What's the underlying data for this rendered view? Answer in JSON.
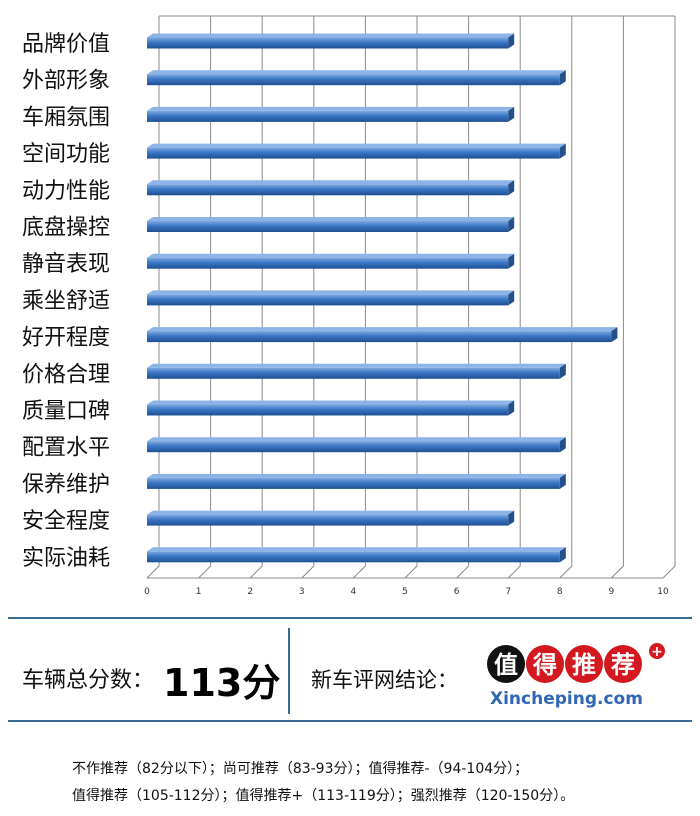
{
  "chart_data": {
    "type": "bar",
    "orientation": "horizontal",
    "categories": [
      "品牌价值",
      "外部形象",
      "车厢氛围",
      "空间功能",
      "动力性能",
      "底盘操控",
      "静音表现",
      "乘坐舒适",
      "好开程度",
      "价格合理",
      "质量口碑",
      "配置水平",
      "保养维护",
      "安全程度",
      "实际油耗"
    ],
    "values": [
      7,
      8,
      7,
      8,
      7,
      7,
      7,
      7,
      9,
      8,
      7,
      8,
      8,
      7,
      8
    ],
    "xlim": [
      0,
      10
    ],
    "xticks": [
      "0",
      "1",
      "2",
      "3",
      "4",
      "5",
      "6",
      "7",
      "8",
      "9",
      "10"
    ],
    "grid": true,
    "bar_color": "#3a76c4"
  },
  "score": {
    "label": "车辆总分数：",
    "value": "113分"
  },
  "conclusion": {
    "label": "新车评网结论："
  },
  "logo": {
    "chars": [
      "值",
      "得",
      "推",
      "荐"
    ],
    "plus": "+",
    "site": "Xincheping.com"
  },
  "legend": {
    "line1": "不作推荐（82分以下）；尚可推荐（83-93分）；值得推荐-（94-104分）；",
    "line2": "值得推荐（105-112分）；值得推荐+（113-119分）；强烈推荐（120-150分）。"
  }
}
